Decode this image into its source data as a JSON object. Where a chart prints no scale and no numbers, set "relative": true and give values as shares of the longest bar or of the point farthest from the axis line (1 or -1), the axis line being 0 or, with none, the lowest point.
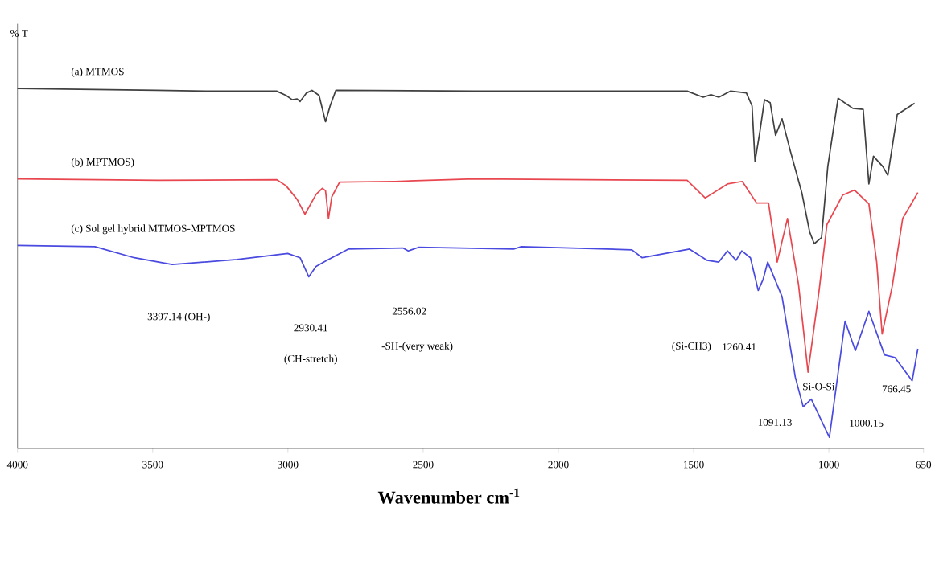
{
  "chart_data": {
    "type": "line",
    "relative": true,
    "xlabel": "Wavenumber cm$^{-1}$",
    "ylabel": "% T",
    "xlim": [
      4000,
      650
    ],
    "xticks": [
      4000,
      3500,
      3000,
      2500,
      2000,
      1500,
      1000,
      650
    ],
    "tick_labels": "x",
    "grid": false,
    "marker": "none",
    "line_style": "solid",
    "series": [
      {
        "name": "(a) MTMOS",
        "color": "#404040",
        "x": [
          4000,
          3486,
          3305,
          3042,
          3007,
          2984,
          2966,
          2955,
          2931,
          2911,
          2885,
          2861,
          2844,
          2823,
          2312,
          1524,
          1465,
          1436,
          1407,
          1363,
          1305,
          1284,
          1273,
          1255,
          1238,
          1217,
          1197,
          1173,
          1144,
          1100,
          1071,
          1054,
          1027,
          1004,
          966,
          911,
          873,
          852,
          835,
          800,
          782,
          747,
          683
        ],
        "values": [
          1.0,
          0.995,
          0.993,
          0.993,
          0.981,
          0.969,
          0.971,
          0.964,
          0.988,
          0.995,
          0.981,
          0.908,
          0.952,
          0.995,
          0.993,
          0.993,
          0.976,
          0.983,
          0.976,
          0.993,
          0.988,
          0.952,
          0.798,
          0.88,
          0.969,
          0.961,
          0.87,
          0.916,
          0.831,
          0.711,
          0.602,
          0.569,
          0.586,
          0.783,
          0.973,
          0.945,
          0.942,
          0.735,
          0.812,
          0.783,
          0.759,
          0.928,
          0.959
        ]
      },
      {
        "name": "(b) MPTMOS)",
        "color": "#e8474f",
        "x": [
          4000,
          3480,
          3042,
          3007,
          2966,
          2937,
          2896,
          2873,
          2861,
          2850,
          2838,
          2809,
          2604,
          2312,
          1524,
          1457,
          1375,
          1320,
          1267,
          1223,
          1191,
          1153,
          1112,
          1077,
          1036,
          1007,
          949,
          905,
          852,
          823,
          803,
          765,
          727,
          671
        ],
        "values": [
          0.749,
          0.745,
          0.747,
          0.73,
          0.692,
          0.651,
          0.706,
          0.723,
          0.716,
          0.639,
          0.699,
          0.74,
          0.742,
          0.749,
          0.745,
          0.696,
          0.735,
          0.742,
          0.682,
          0.682,
          0.518,
          0.639,
          0.455,
          0.212,
          0.439,
          0.622,
          0.704,
          0.718,
          0.68,
          0.518,
          0.318,
          0.453,
          0.639,
          0.711
        ]
      },
      {
        "name": "(c) Sol gel hybrid MTMOS-MPTMOS",
        "color": "#4a4ae0",
        "x": [
          4000,
          3714,
          3568,
          3428,
          3188,
          3001,
          2955,
          2923,
          2896,
          2855,
          2777,
          2575,
          2555,
          2517,
          2166,
          2137,
          1728,
          1690,
          1515,
          1451,
          1407,
          1375,
          1343,
          1322,
          1290,
          1261,
          1243,
          1226,
          1173,
          1124,
          1095,
          1065,
          998,
          940,
          902,
          852,
          794,
          756,
          692,
          671
        ],
        "values": [
          0.564,
          0.561,
          0.53,
          0.511,
          0.525,
          0.542,
          0.53,
          0.477,
          0.506,
          0.523,
          0.554,
          0.557,
          0.549,
          0.559,
          0.554,
          0.561,
          0.552,
          0.53,
          0.554,
          0.523,
          0.518,
          0.549,
          0.523,
          0.549,
          0.53,
          0.439,
          0.47,
          0.518,
          0.422,
          0.198,
          0.116,
          0.137,
          0.031,
          0.354,
          0.272,
          0.381,
          0.26,
          0.253,
          0.188,
          0.277
        ]
      }
    ],
    "annotations": [
      "3397.14  (OH-)",
      "2930.41",
      "(CH-stretch)",
      "2556.02",
      "-SH-(very weak)",
      "(Si-CH3)",
      "1260.41",
      "Si-O-Si",
      "1091.13",
      "1000.15",
      "766.45"
    ]
  }
}
